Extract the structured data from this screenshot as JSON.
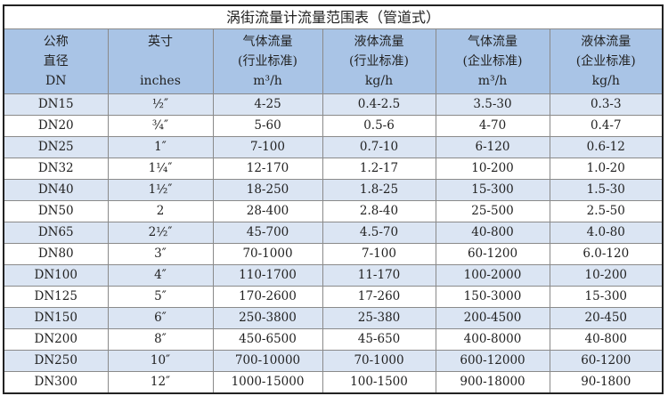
{
  "title": "涡街流量计流量范围表（管道式）",
  "headers": [
    {
      "l1": "公称",
      "l2": "直径",
      "l3": "DN"
    },
    {
      "l1": "英寸",
      "l2": "",
      "l3": "inches"
    },
    {
      "l1": "气体流量",
      "l2": "(行业标准)",
      "l3": "m³/h"
    },
    {
      "l1": "液体流量",
      "l2": "(行业标准)",
      "l3": "kg/h"
    },
    {
      "l1": "气体流量",
      "l2": "(企业标准)",
      "l3": "m³/h"
    },
    {
      "l1": "液体流量",
      "l2": "(企业标准)",
      "l3": "kg/h"
    }
  ],
  "rows": [
    [
      "DN15",
      "½″",
      "4-25",
      "0.4-2.5",
      "3.5-30",
      "0.3-3"
    ],
    [
      "DN20",
      "¾″",
      "5-60",
      "0.5-6",
      "4-70",
      "0.4-7"
    ],
    [
      "DN25",
      "1″",
      "7-100",
      "0.7-10",
      "6-120",
      "0.6-12"
    ],
    [
      "DN32",
      "1¼″",
      "12-170",
      "1.2-17",
      "10-200",
      "1.0-20"
    ],
    [
      "DN40",
      "1½″",
      "18-250",
      "1.8-25",
      "15-300",
      "1.5-30"
    ],
    [
      "DN50",
      "2",
      "28-400",
      "2.8-40",
      "25-500",
      "2.5-50"
    ],
    [
      "DN65",
      "2½″",
      "45-700",
      "4.5-70",
      "40-800",
      "4.0-80"
    ],
    [
      "DN80",
      "3″",
      "70-1000",
      "7-100",
      "60-1200",
      "6.0-120"
    ],
    [
      "DN100",
      "4″",
      "110-1700",
      "11-170",
      "100-2000",
      "10-200"
    ],
    [
      "DN125",
      "5″",
      "170-2600",
      "17-260",
      "150-3000",
      "15-300"
    ],
    [
      "DN150",
      "6″",
      "250-3800",
      "25-380",
      "200-4500",
      "20-450"
    ],
    [
      "DN200",
      "8″",
      "450-6500",
      "45-650",
      "400-8000",
      "40-800"
    ],
    [
      "DN250",
      "10″",
      "700-10000",
      "70-1000",
      "600-12000",
      "60-1200"
    ],
    [
      "DN300",
      "12″",
      "1000-15000",
      "100-1500",
      "900-18000",
      "90-1800"
    ]
  ]
}
